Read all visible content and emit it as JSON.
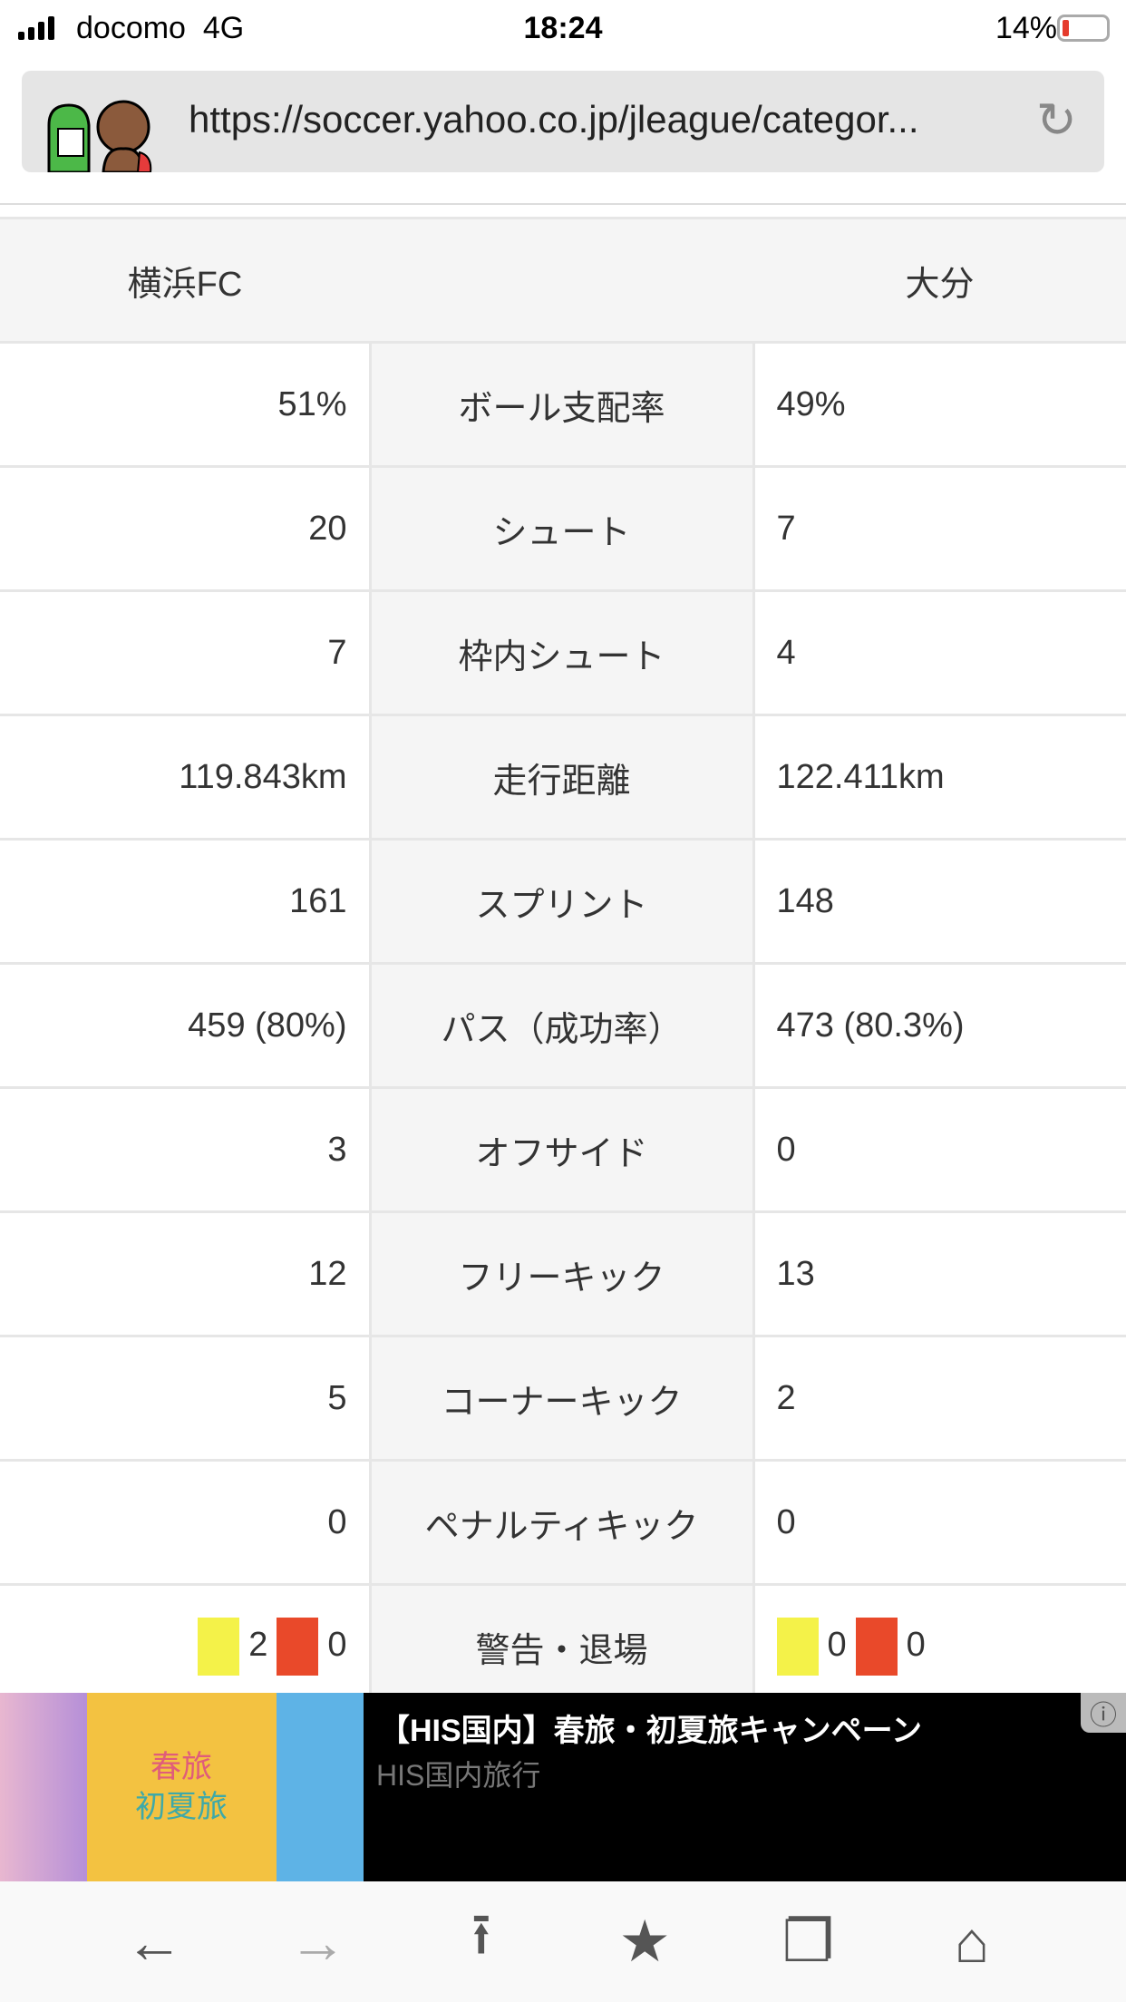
{
  "status_bar": {
    "carrier": "docomo",
    "network": "4G",
    "time": "18:24",
    "battery": "14%",
    "battery_level": 0.14
  },
  "browser": {
    "url": "https://soccer.yahoo.co.jp/jleague/categor..."
  },
  "stats": {
    "home_team": "横浜FC",
    "away_team": "大分",
    "rows": [
      {
        "label": "ボール支配率",
        "home": "51%",
        "away": "49%"
      },
      {
        "label": "シュート",
        "home": "20",
        "away": "7"
      },
      {
        "label": "枠内シュート",
        "home": "7",
        "away": "4"
      },
      {
        "label": "走行距離",
        "home": "119.843km",
        "away": "122.411km"
      },
      {
        "label": "スプリント",
        "home": "161",
        "away": "148"
      },
      {
        "label": "パス（成功率）",
        "home": "459 (80%)",
        "away": "473 (80.3%)"
      },
      {
        "label": "オフサイド",
        "home": "3",
        "away": "0"
      },
      {
        "label": "フリーキック",
        "home": "12",
        "away": "13"
      },
      {
        "label": "コーナーキック",
        "home": "5",
        "away": "2"
      },
      {
        "label": "ペナルティキック",
        "home": "0",
        "away": "0"
      }
    ],
    "cards": {
      "label": "警告・退場",
      "home_yellow": "2",
      "home_red": "0",
      "away_yellow": "0",
      "away_red": "0",
      "yellow_color": "#f4f249",
      "red_color": "#e9492a"
    }
  },
  "ad": {
    "title": "【HIS国内】春旅・初夏旅キャンペーン",
    "advertiser": "HIS国内旅行",
    "image_text_1": "春旅",
    "image_text_2": "初夏旅"
  },
  "toolbar": {
    "icons": [
      "back-icon",
      "forward-icon",
      "share-icon",
      "bookmarks-icon",
      "tabs-icon",
      "home-icon"
    ]
  }
}
